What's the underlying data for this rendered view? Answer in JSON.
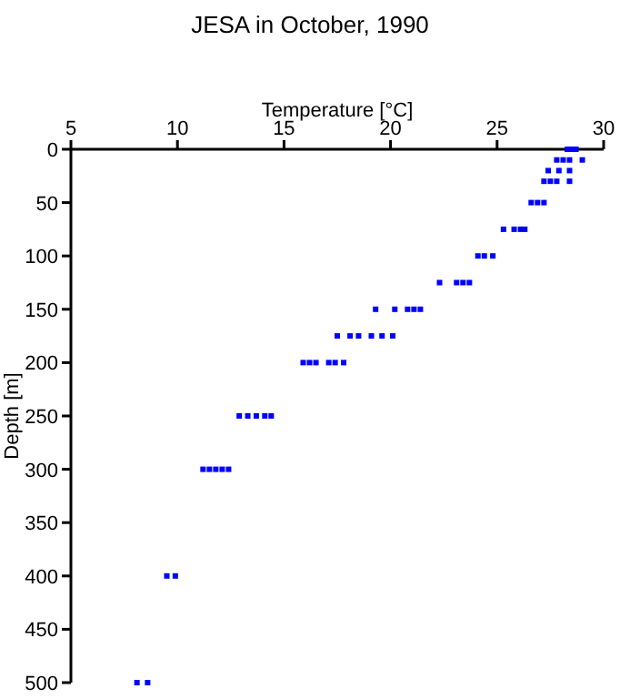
{
  "chart_data": {
    "type": "scatter",
    "title": "JESA in October, 1990",
    "xlabel": "Temperature [°C]",
    "ylabel": "Depth [m]",
    "xlim": [
      5,
      30
    ],
    "xticks": [
      5,
      10,
      15,
      20,
      25,
      30
    ],
    "ylim": [
      500,
      0
    ],
    "yticks": [
      0,
      50,
      100,
      150,
      200,
      250,
      300,
      350,
      400,
      450,
      500
    ],
    "marker": "square",
    "grid": false,
    "series": [
      {
        "color": "#0000ff",
        "x": [
          28.3,
          28.5,
          28.7,
          27.8,
          28.1,
          28.4,
          29.0,
          27.4,
          27.9,
          28.4,
          27.2,
          27.5,
          27.8,
          28.4,
          26.6,
          26.9,
          27.2,
          25.3,
          25.8,
          26.1,
          26.3,
          24.1,
          24.4,
          24.8,
          22.3,
          23.1,
          23.4,
          23.7,
          19.3,
          20.2,
          20.8,
          21.1,
          21.4,
          17.5,
          18.1,
          18.5,
          19.1,
          19.6,
          20.1,
          15.9,
          16.2,
          16.5,
          17.1,
          17.4,
          17.8,
          12.9,
          13.3,
          13.7,
          14.1,
          14.4,
          11.2,
          11.5,
          11.8,
          12.1,
          12.4,
          9.5,
          9.9,
          8.1,
          8.6
        ],
        "values": [
          0,
          0,
          0,
          10,
          10,
          10,
          10,
          20,
          20,
          20,
          30,
          30,
          30,
          30,
          50,
          50,
          50,
          75,
          75,
          75,
          75,
          100,
          100,
          100,
          125,
          125,
          125,
          125,
          150,
          150,
          150,
          150,
          150,
          175,
          175,
          175,
          175,
          175,
          175,
          200,
          200,
          200,
          200,
          200,
          200,
          250,
          250,
          250,
          250,
          250,
          300,
          300,
          300,
          300,
          300,
          400,
          400,
          500,
          500
        ]
      }
    ]
  }
}
